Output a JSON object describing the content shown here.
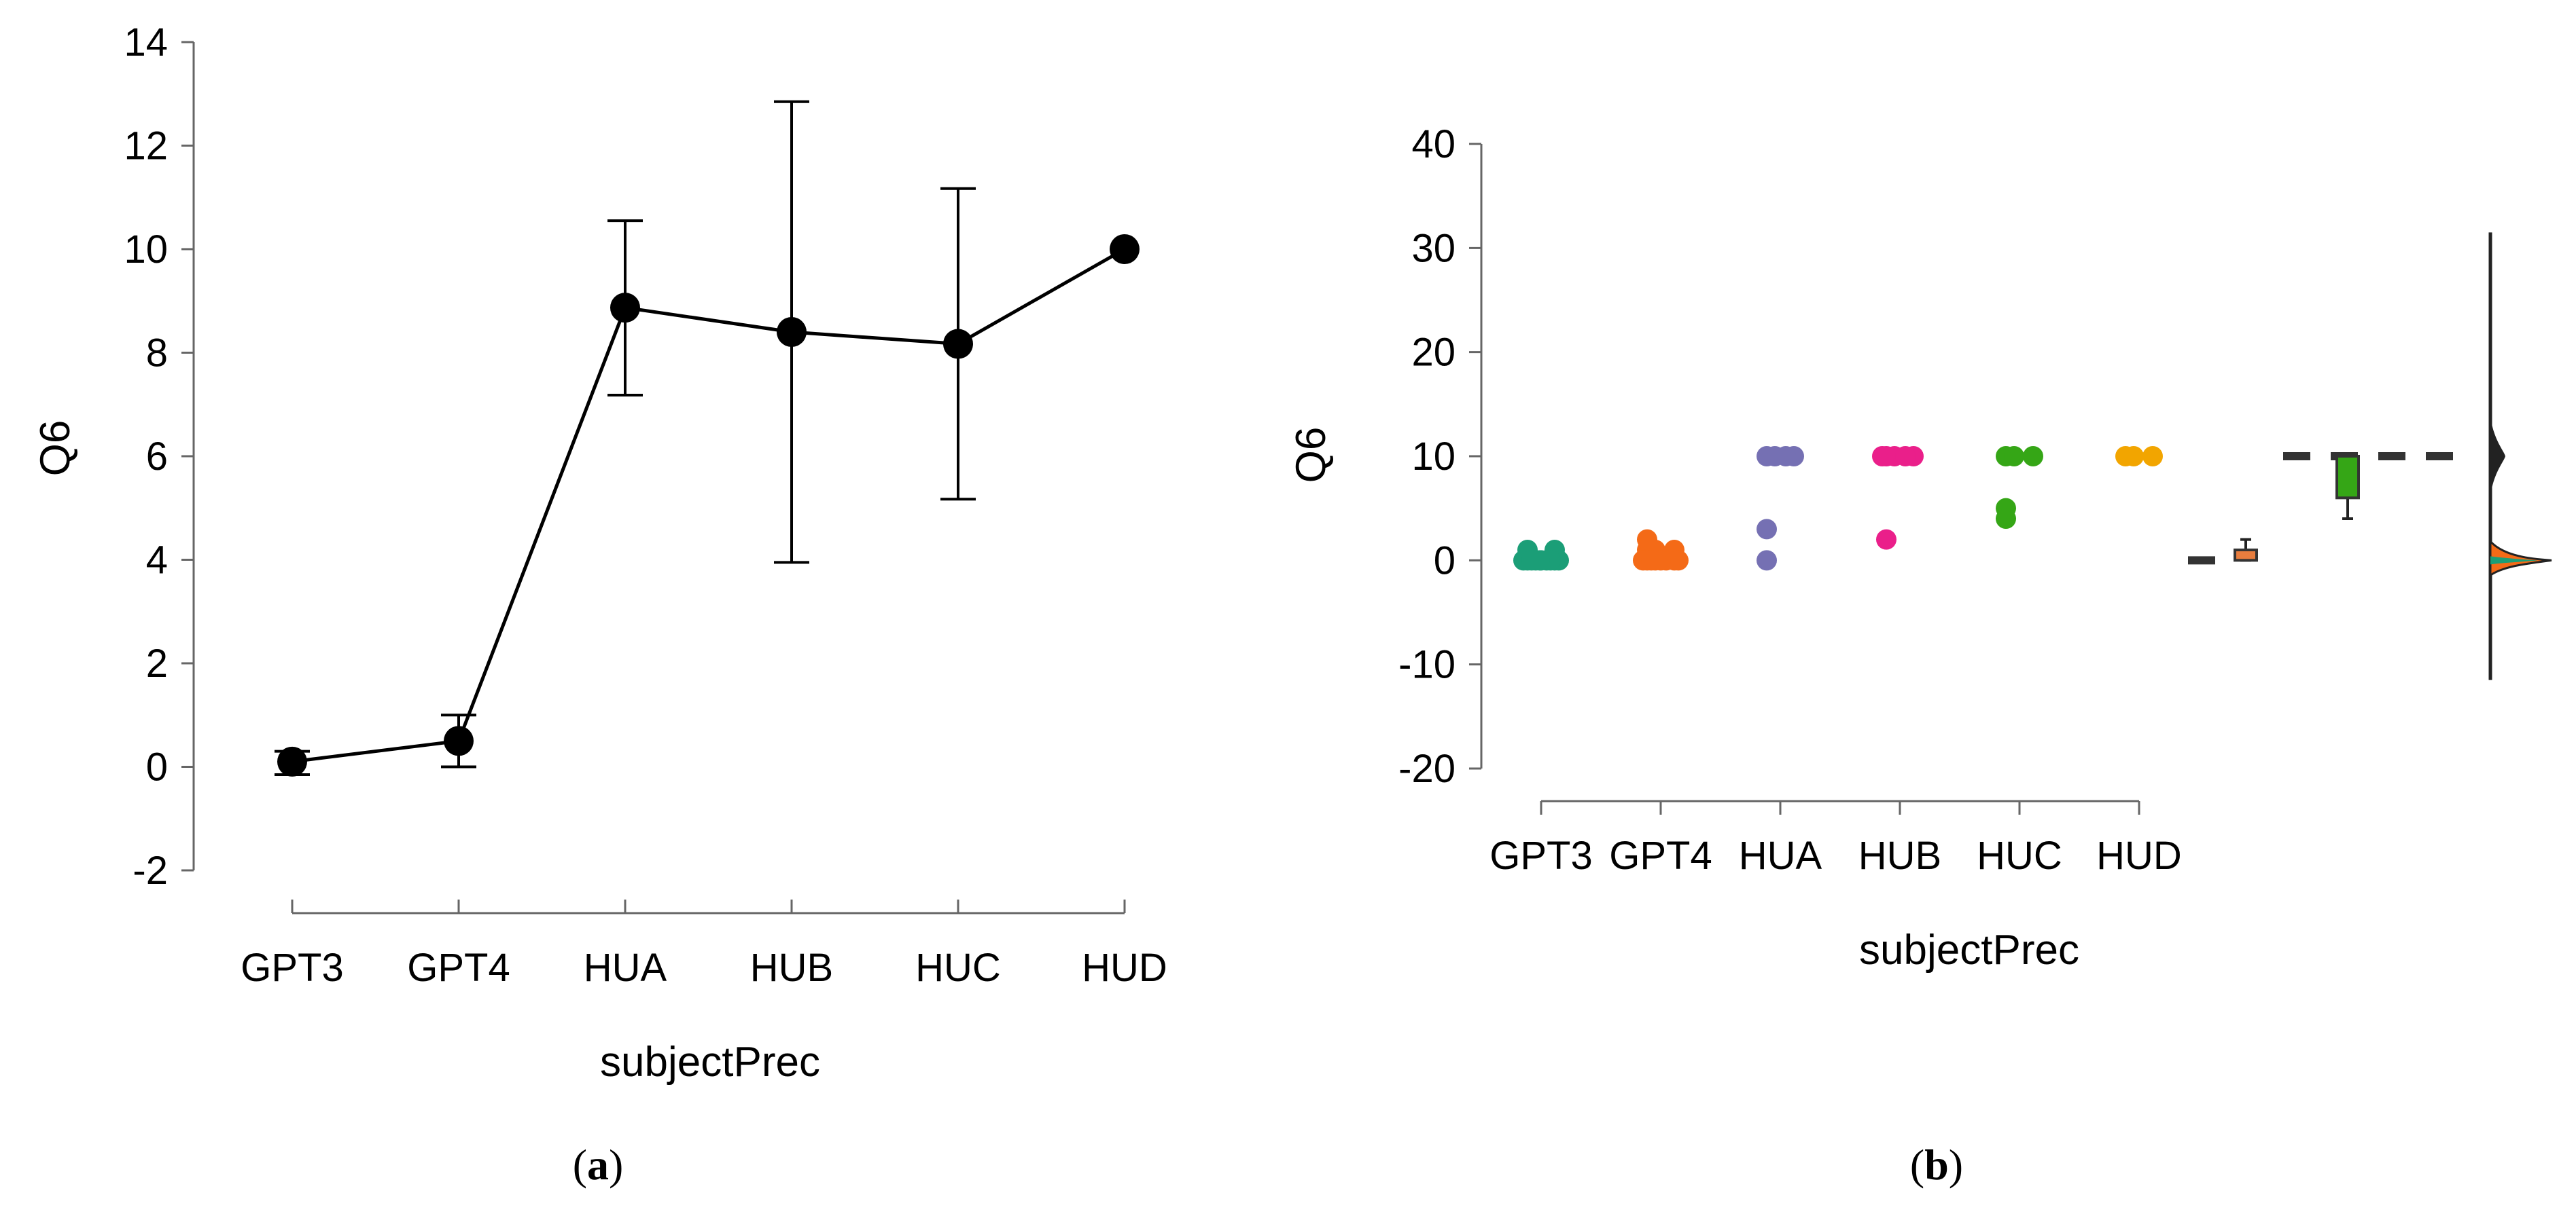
{
  "chart_data": [
    {
      "type": "line",
      "panel_label": "a",
      "xlabel": "subjectPrec",
      "ylabel": "Q6",
      "categories": [
        "GPT3",
        "GPT4",
        "HUA",
        "HUB",
        "HUC",
        "HUD"
      ],
      "ylim": [
        -2,
        14
      ],
      "yticks": [
        -2,
        0,
        2,
        4,
        6,
        8,
        10,
        12,
        14
      ],
      "series": [
        {
          "values": [
            0.1,
            0.5,
            8.87,
            8.4,
            8.17,
            10.0
          ],
          "error_low": [
            -0.15,
            0.0,
            7.18,
            3.95,
            5.17,
            10.0
          ],
          "error_high": [
            0.3,
            1.0,
            10.55,
            12.85,
            11.17,
            10.0
          ]
        }
      ],
      "colors": {
        "line": "#000000",
        "marker": "#000000"
      },
      "grid": false
    },
    {
      "type": "scatter",
      "panel_label": "b",
      "xlabel": "subjectPrec",
      "ylabel": "Q6",
      "categories": [
        "GPT3",
        "GPT4",
        "HUA",
        "HUB",
        "HUC",
        "HUD"
      ],
      "ylim": [
        -20,
        40
      ],
      "yticks": [
        -20,
        -10,
        0,
        10,
        20,
        30,
        40
      ],
      "series": [
        {
          "category": "GPT3",
          "color": "#1b9e77",
          "values": [
            0,
            0,
            0,
            0,
            0,
            0,
            0,
            1,
            1,
            0,
            0,
            0
          ]
        },
        {
          "category": "GPT4",
          "color": "#f46a17",
          "values": [
            0,
            0,
            0,
            0,
            1,
            1,
            2,
            0,
            0,
            1,
            0,
            0
          ]
        },
        {
          "category": "HUA",
          "color": "#7570b3",
          "values": [
            10,
            10,
            10,
            10,
            3,
            0
          ]
        },
        {
          "category": "HUB",
          "color": "#ea1f8a",
          "values": [
            10,
            10,
            10,
            10,
            10,
            2
          ]
        },
        {
          "category": "HUC",
          "color": "#35a616",
          "values": [
            10,
            10,
            10,
            5,
            4
          ]
        },
        {
          "category": "HUD",
          "color": "#f2a500",
          "values": [
            10,
            10,
            10
          ]
        }
      ],
      "summary_marks": {
        "dash_lines": [
          {
            "y": 0,
            "color": "#333333"
          },
          {
            "y": 10,
            "color": "#333333"
          }
        ],
        "boxplots": [
          {
            "color": "#e87d3e",
            "min": 0,
            "q1": 0,
            "median": 0.5,
            "q3": 1,
            "max": 2
          },
          {
            "color": "#35a616",
            "min": 4,
            "q1": 6,
            "median": 10,
            "q3": 10,
            "max": 10
          }
        ],
        "density": {
          "color": "#222222",
          "fill_colors": [
            "#f46a17",
            "#1b9e77"
          ],
          "peaks": [
            0,
            10
          ]
        }
      },
      "grid": false
    }
  ],
  "captions": {
    "a": "a",
    "b": "b"
  }
}
